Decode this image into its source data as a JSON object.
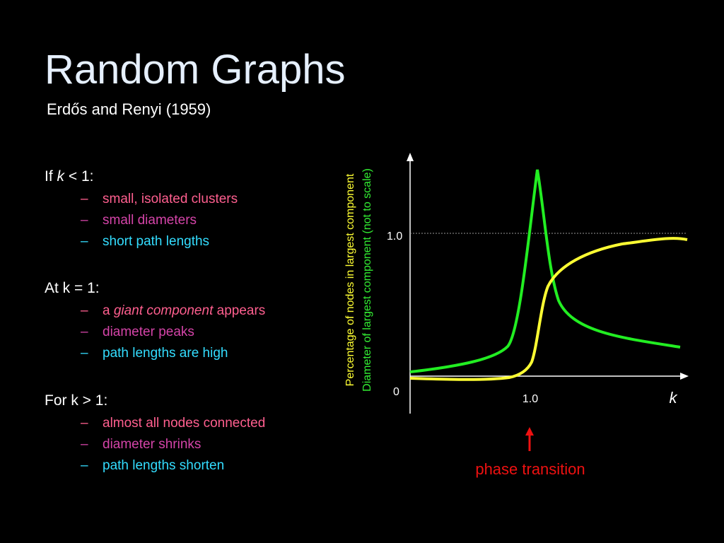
{
  "title": "Random Graphs",
  "subtitle": "Erdős and Renyi (1959)",
  "sections": [
    {
      "heading": [
        "If ",
        "k",
        " < 1:"
      ],
      "items": [
        "small, isolated clusters",
        "small diameters",
        "short path lengths"
      ]
    },
    {
      "heading": [
        "At k = 1:"
      ],
      "items": [
        [
          "a ",
          "giant component",
          " appears"
        ],
        "diameter peaks",
        "path lengths are high"
      ]
    },
    {
      "heading": [
        "For k > 1:"
      ],
      "items": [
        "almost all nodes connected",
        "diameter shrinks",
        "path lengths shorten"
      ]
    }
  ],
  "figure": {
    "y_label_1": "Percentage of nodes in largest component",
    "y_label_2": "Diameter of largest component (not to scale)",
    "y_tick": "1.0",
    "origin": "0",
    "x_tick": "1.0",
    "x_label": "k",
    "annotation": "phase transition"
  }
}
